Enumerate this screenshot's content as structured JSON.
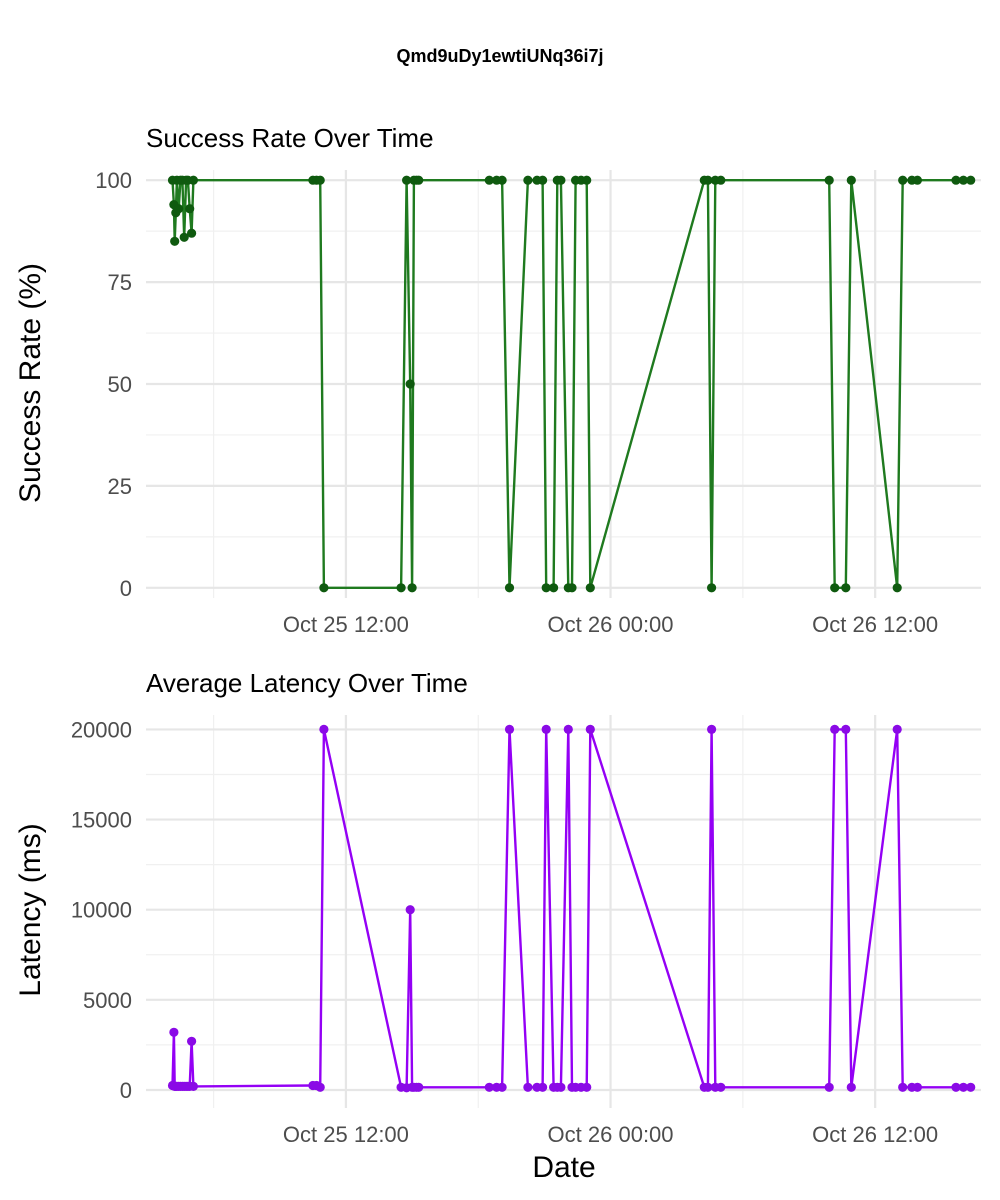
{
  "title": "Qmd9uDy1ewtiUNq36i7j",
  "xlabel": "Date",
  "colors": {
    "success_line": "#1f7a1f",
    "success_point": "#0f5a0f",
    "latency_line": "#9400f5",
    "latency_point": "#8a0ae6",
    "grid_major": "#e6e6e6",
    "grid_minor": "#f0f0f0",
    "tick_text": "#4d4d4d",
    "axis_title": "#000000"
  },
  "chart_data": [
    {
      "type": "line",
      "title": "Success Rate Over Time",
      "ylabel": "Success Rate (%)",
      "xlabel": "",
      "xlim": [
        "2025-10-25T02:56",
        "2025-10-26T16:48"
      ],
      "ylim": [
        -2.5,
        102.5
      ],
      "yticks": [
        0,
        25,
        50,
        75,
        100
      ],
      "xticks": [
        {
          "at": "2025-10-25T12:00",
          "label": "Oct 25 12:00"
        },
        {
          "at": "2025-10-26T00:00",
          "label": "Oct 26 00:00"
        },
        {
          "at": "2025-10-26T12:00",
          "label": "Oct 26 12:00"
        }
      ],
      "grid": true,
      "series": [
        {
          "x": [
            "2025-10-25T04:08",
            "2025-10-25T04:12",
            "2025-10-25T04:14",
            "2025-10-25T04:17",
            "2025-10-25T04:20",
            "2025-10-25T04:25",
            "2025-10-25T04:30",
            "2025-10-25T04:35",
            "2025-10-25T04:40",
            "2025-10-25T04:45",
            "2025-10-25T04:50",
            "2025-10-25T04:55",
            "2025-10-25T05:00",
            "2025-10-25T05:05",
            "2025-10-25T10:30",
            "2025-10-25T10:40",
            "2025-10-25T10:50",
            "2025-10-25T11:00",
            "2025-10-25T14:30",
            "2025-10-25T14:45",
            "2025-10-25T14:55",
            "2025-10-25T15:00",
            "2025-10-25T15:05",
            "2025-10-25T15:12",
            "2025-10-25T15:18",
            "2025-10-25T18:30",
            "2025-10-25T18:50",
            "2025-10-25T19:05",
            "2025-10-25T19:25",
            "2025-10-25T20:15",
            "2025-10-25T20:40",
            "2025-10-25T20:55",
            "2025-10-25T21:05",
            "2025-10-25T21:25",
            "2025-10-25T21:35",
            "2025-10-25T21:45",
            "2025-10-25T22:05",
            "2025-10-25T22:15",
            "2025-10-25T22:25",
            "2025-10-25T22:40",
            "2025-10-25T22:55",
            "2025-10-25T23:05",
            "2025-10-26T04:15",
            "2025-10-26T04:25",
            "2025-10-26T04:35",
            "2025-10-26T04:45",
            "2025-10-26T05:00",
            "2025-10-26T09:55",
            "2025-10-26T10:10",
            "2025-10-26T10:40",
            "2025-10-26T10:55",
            "2025-10-26T13:00",
            "2025-10-26T13:15",
            "2025-10-26T13:40",
            "2025-10-26T13:55",
            "2025-10-26T15:40",
            "2025-10-26T16:00",
            "2025-10-26T16:20"
          ],
          "y": [
            100,
            94,
            85,
            92,
            100,
            93,
            100,
            100,
            86,
            100,
            100,
            93,
            87,
            100,
            100,
            100,
            100,
            0,
            0,
            100,
            50,
            0,
            100,
            100,
            100,
            100,
            100,
            100,
            0,
            100,
            100,
            100,
            0,
            0,
            100,
            100,
            0,
            0,
            100,
            100,
            100,
            0,
            100,
            100,
            0,
            100,
            100,
            100,
            0,
            0,
            100,
            0,
            100,
            100,
            100,
            100,
            100,
            100
          ]
        }
      ]
    },
    {
      "type": "line",
      "title": "Average Latency Over Time",
      "ylabel": "Latency (ms)",
      "xlabel": "Date",
      "xlim": [
        "2025-10-25T02:56",
        "2025-10-26T16:48"
      ],
      "ylim": [
        -1000,
        20800
      ],
      "yticks": [
        0,
        5000,
        10000,
        15000,
        20000
      ],
      "xticks": [
        {
          "at": "2025-10-25T12:00",
          "label": "Oct 25 12:00"
        },
        {
          "at": "2025-10-26T00:00",
          "label": "Oct 26 00:00"
        },
        {
          "at": "2025-10-26T12:00",
          "label": "Oct 26 12:00"
        }
      ],
      "grid": true,
      "series": [
        {
          "x": [
            "2025-10-25T04:08",
            "2025-10-25T04:12",
            "2025-10-25T04:14",
            "2025-10-25T04:17",
            "2025-10-25T04:20",
            "2025-10-25T04:25",
            "2025-10-25T04:30",
            "2025-10-25T04:35",
            "2025-10-25T04:40",
            "2025-10-25T04:45",
            "2025-10-25T04:50",
            "2025-10-25T04:55",
            "2025-10-25T05:00",
            "2025-10-25T05:05",
            "2025-10-25T10:30",
            "2025-10-25T10:40",
            "2025-10-25T10:50",
            "2025-10-25T11:00",
            "2025-10-25T14:30",
            "2025-10-25T14:45",
            "2025-10-25T14:55",
            "2025-10-25T15:00",
            "2025-10-25T15:05",
            "2025-10-25T15:12",
            "2025-10-25T15:18",
            "2025-10-25T18:30",
            "2025-10-25T18:50",
            "2025-10-25T19:05",
            "2025-10-25T19:25",
            "2025-10-25T20:15",
            "2025-10-25T20:40",
            "2025-10-25T20:55",
            "2025-10-25T21:05",
            "2025-10-25T21:25",
            "2025-10-25T21:35",
            "2025-10-25T21:45",
            "2025-10-25T22:05",
            "2025-10-25T22:15",
            "2025-10-25T22:25",
            "2025-10-25T22:40",
            "2025-10-25T22:55",
            "2025-10-25T23:05",
            "2025-10-26T04:15",
            "2025-10-26T04:25",
            "2025-10-26T04:35",
            "2025-10-26T04:45",
            "2025-10-26T05:00",
            "2025-10-26T09:55",
            "2025-10-26T10:10",
            "2025-10-26T10:40",
            "2025-10-26T10:55",
            "2025-10-26T13:00",
            "2025-10-26T13:15",
            "2025-10-26T13:40",
            "2025-10-26T13:55",
            "2025-10-26T15:40",
            "2025-10-26T16:00",
            "2025-10-26T16:20"
          ],
          "y": [
            250,
            3200,
            200,
            200,
            200,
            200,
            200,
            200,
            200,
            200,
            200,
            200,
            2700,
            200,
            250,
            250,
            150,
            20000,
            150,
            120,
            10000,
            150,
            150,
            150,
            150,
            150,
            150,
            150,
            20000,
            150,
            150,
            150,
            20000,
            150,
            150,
            150,
            20000,
            150,
            150,
            150,
            150,
            20000,
            150,
            150,
            20000,
            150,
            150,
            150,
            20000,
            20000,
            150,
            20000,
            150,
            150,
            150,
            150,
            150,
            150
          ]
        }
      ]
    }
  ]
}
